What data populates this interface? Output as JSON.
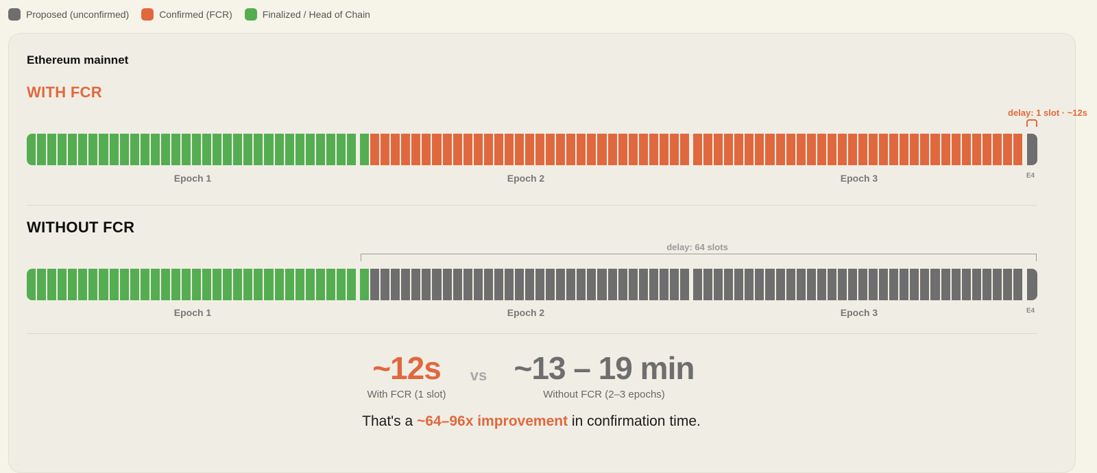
{
  "legend": [
    {
      "label": "Proposed (unconfirmed)",
      "color": "#6e6e6e"
    },
    {
      "label": "Confirmed (FCR)",
      "color": "#e0683f"
    },
    {
      "label": "Finalized / Head of Chain",
      "color": "#55ad52"
    }
  ],
  "network": "Ethereum mainnet",
  "colors": {
    "finalized": "#55ad52",
    "confirmed": "#e0683f",
    "proposed": "#6e6e6e"
  },
  "with_fcr": {
    "title": "WITH FCR",
    "delay_label": "delay: 1 slot · ~12s",
    "epochs": [
      "Epoch 1",
      "Epoch 2",
      "Epoch 3",
      "E4"
    ],
    "slot_states": {
      "epoch1": "finalized",
      "epoch2_first": "finalized",
      "epoch2_rest": "confirmed",
      "epoch3": "confirmed",
      "epoch4": "proposed"
    }
  },
  "without_fcr": {
    "title": "WITHOUT FCR",
    "delay_label": "delay: 64 slots",
    "epochs": [
      "Epoch 1",
      "Epoch 2",
      "Epoch 3",
      "E4"
    ],
    "slot_states": {
      "epoch1": "finalized",
      "epoch2_first": "finalized",
      "epoch2_rest": "proposed",
      "epoch3": "proposed",
      "epoch4": "proposed"
    }
  },
  "slots_per_epoch": 32,
  "comparison": {
    "with_value": "~12s",
    "with_caption": "With FCR (1 slot)",
    "vs": "vs",
    "without_value": "~13 – 19 min",
    "without_caption": "Without FCR (2–3 epochs)"
  },
  "summary": {
    "prefix": "That's a ",
    "highlight": "~64–96x improvement",
    "suffix": " in confirmation time."
  }
}
